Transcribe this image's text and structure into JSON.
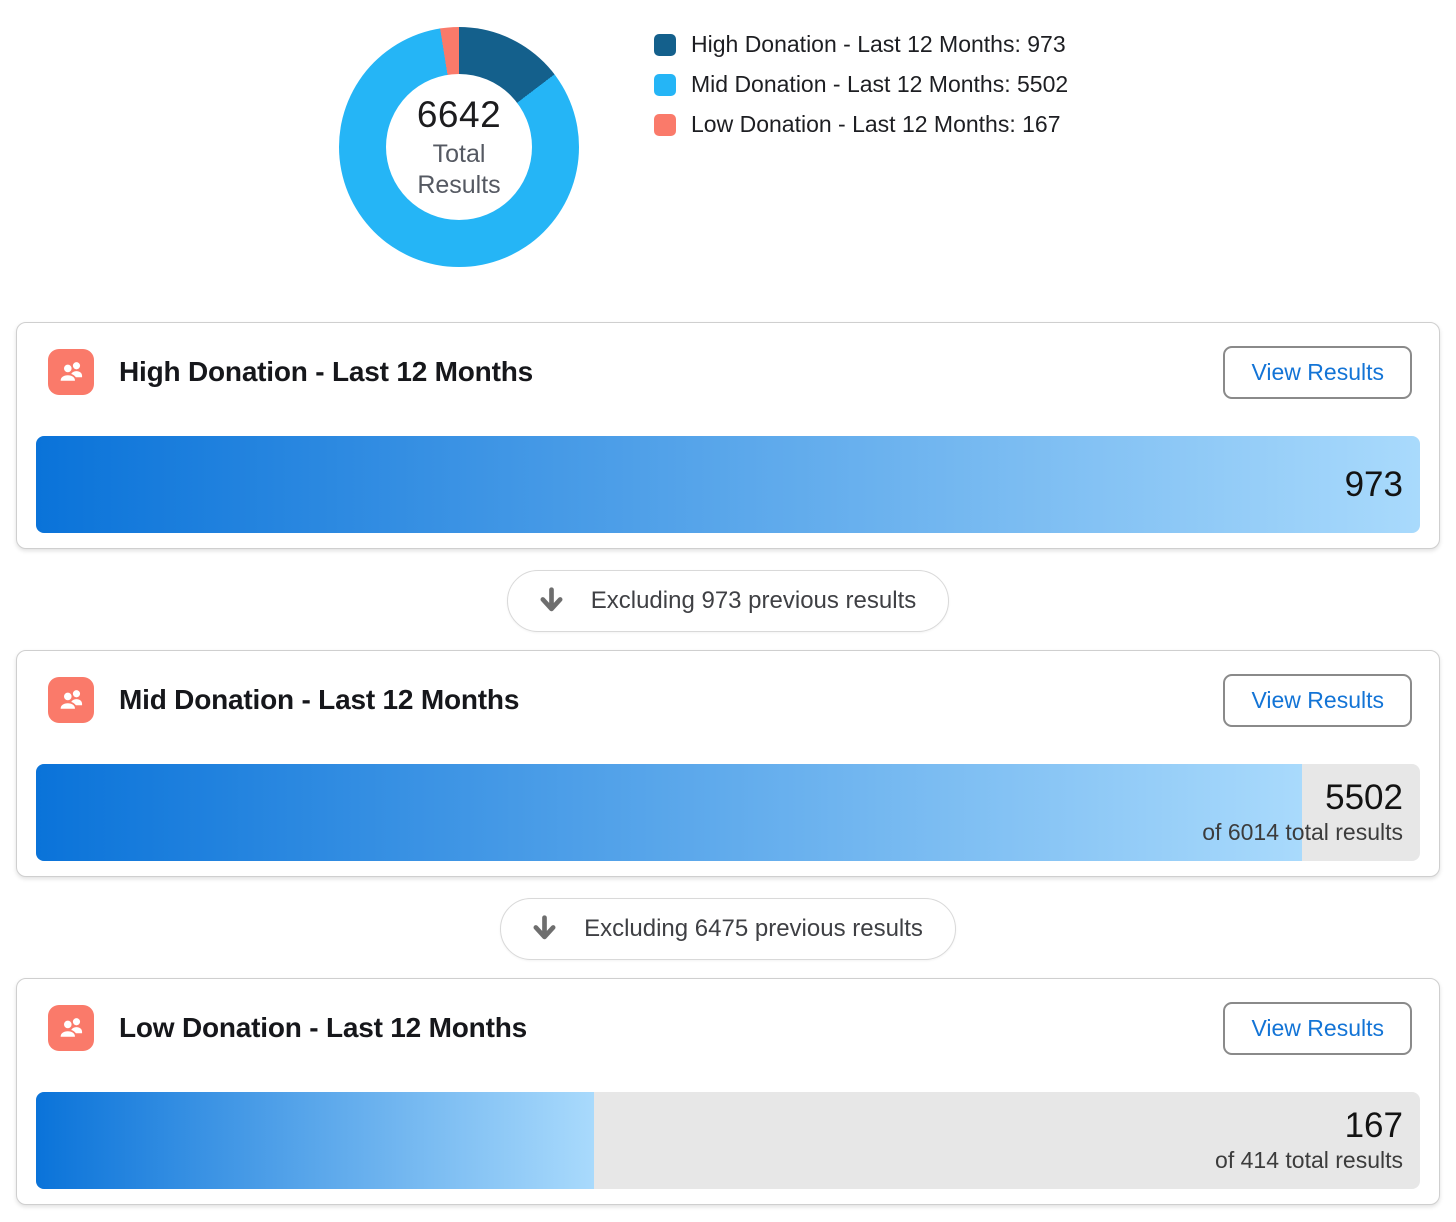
{
  "colors": {
    "segment_high": "#14608c",
    "segment_mid": "#25b5f6",
    "segment_low": "#fa7a6a",
    "bar_gradient_start": "#0a73d9",
    "bar_gradient_end": "#a9dafc",
    "bar_track": "#e7e7e7",
    "button_text_blue": "#1374d6",
    "icon_badge_bg": "#fa7a6a"
  },
  "chart_data": {
    "type": "pie",
    "subtype": "donut",
    "center_value": 6642,
    "center_label": "Total Results",
    "segments": [
      {
        "label": "High Donation - Last 12 Months",
        "value": 973,
        "color": "#14608c"
      },
      {
        "label": "Mid Donation - Last 12 Months",
        "value": 5502,
        "color": "#25b5f6"
      },
      {
        "label": "Low Donation - Last 12 Months",
        "value": 167,
        "color": "#fa7a6a"
      }
    ],
    "legend_position": "right",
    "bars": [
      {
        "label": "High Donation - Last 12 Months",
        "value": 973,
        "total": 973,
        "percent": 100
      },
      {
        "label": "Mid Donation - Last 12 Months",
        "value": 5502,
        "total": 6014,
        "percent": 91.49
      },
      {
        "label": "Low Donation - Last 12 Months",
        "value": 167,
        "total": 414,
        "percent": 40.34
      }
    ]
  },
  "donut_center": {
    "value": "6642",
    "label_line1": "Total",
    "label_line2": "Results"
  },
  "legend": {
    "items": [
      {
        "label": "High Donation - Last 12 Months: 973"
      },
      {
        "label": "Mid Donation - Last 12 Months: 5502"
      },
      {
        "label": "Low Donation - Last 12 Months: 167"
      }
    ]
  },
  "cards": [
    {
      "title": "High Donation - Last 12 Months",
      "button_label": "View Results",
      "value": "973",
      "subtext": "",
      "percent": 100
    },
    {
      "title": "Mid Donation - Last 12 Months",
      "button_label": "View Results",
      "value": "5502",
      "subtext": "of 6014 total results",
      "percent": 91.49
    },
    {
      "title": "Low Donation - Last 12 Months",
      "button_label": "View Results",
      "value": "167",
      "subtext": "of 414 total results",
      "percent": 40.34
    }
  ],
  "connectors": [
    {
      "label": "Excluding 973 previous results"
    },
    {
      "label": "Excluding 6475 previous results"
    }
  ]
}
